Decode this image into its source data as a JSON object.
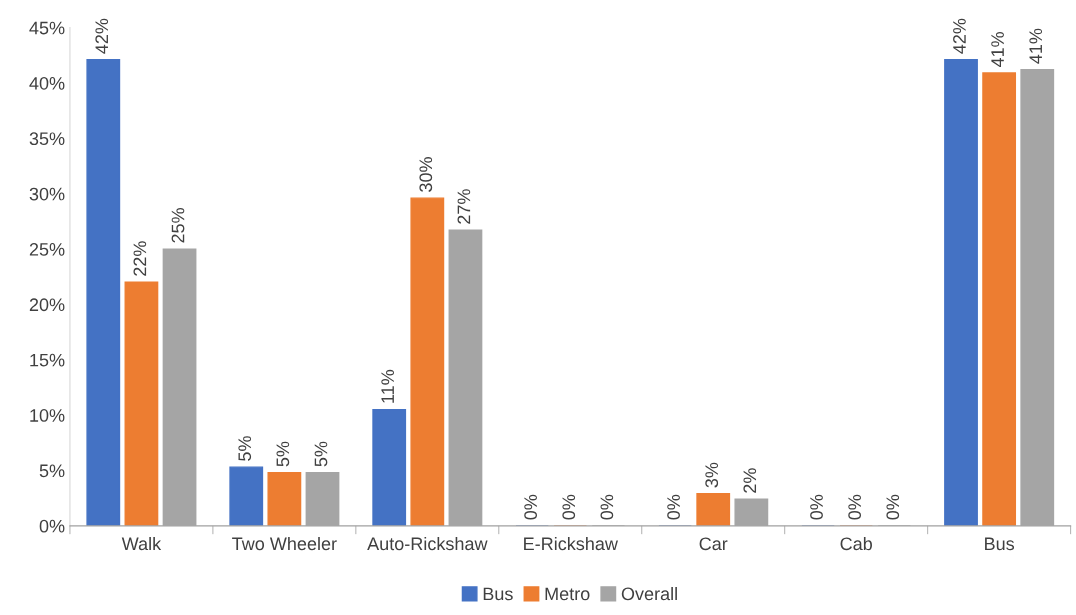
{
  "chart_data": {
    "type": "bar",
    "categories": [
      "Walk",
      "Two Wheeler",
      "Auto-Rickshaw",
      "E-Rickshaw",
      "Car",
      "Cab",
      "Bus"
    ],
    "series": [
      {
        "name": "Bus",
        "color": "#4472c4",
        "values": [
          42.1,
          5.3,
          10.5,
          0,
          0,
          0,
          42.1
        ],
        "value_labels": [
          "42%",
          "5%",
          "11%",
          "0%",
          "0%",
          "0%",
          "42%"
        ]
      },
      {
        "name": "Metro",
        "color": "#ed7d31",
        "values": [
          22.0,
          4.8,
          29.6,
          0,
          2.9,
          0,
          40.9
        ],
        "value_labels": [
          "22%",
          "5%",
          "30%",
          "0%",
          "3%",
          "0%",
          "41%"
        ]
      },
      {
        "name": "Overall",
        "color": "#a5a5a5",
        "values": [
          25.0,
          4.8,
          26.7,
          0,
          2.4,
          0,
          41.2
        ],
        "value_labels": [
          "25%",
          "5%",
          "27%",
          "0%",
          "2%",
          "0%",
          "41%"
        ]
      }
    ],
    "ylim": [
      0,
      45
    ],
    "yticks": [
      {
        "value": 0,
        "label": "0%"
      },
      {
        "value": 5,
        "label": "5%"
      },
      {
        "value": 10,
        "label": "10%"
      },
      {
        "value": 15,
        "label": "15%"
      },
      {
        "value": 20,
        "label": "20%"
      },
      {
        "value": 25,
        "label": "25%"
      },
      {
        "value": 30,
        "label": "30%"
      },
      {
        "value": 35,
        "label": "35%"
      },
      {
        "value": 40,
        "label": "40%"
      },
      {
        "value": 45,
        "label": "45%"
      }
    ],
    "grid": false,
    "legend": "bottom"
  }
}
